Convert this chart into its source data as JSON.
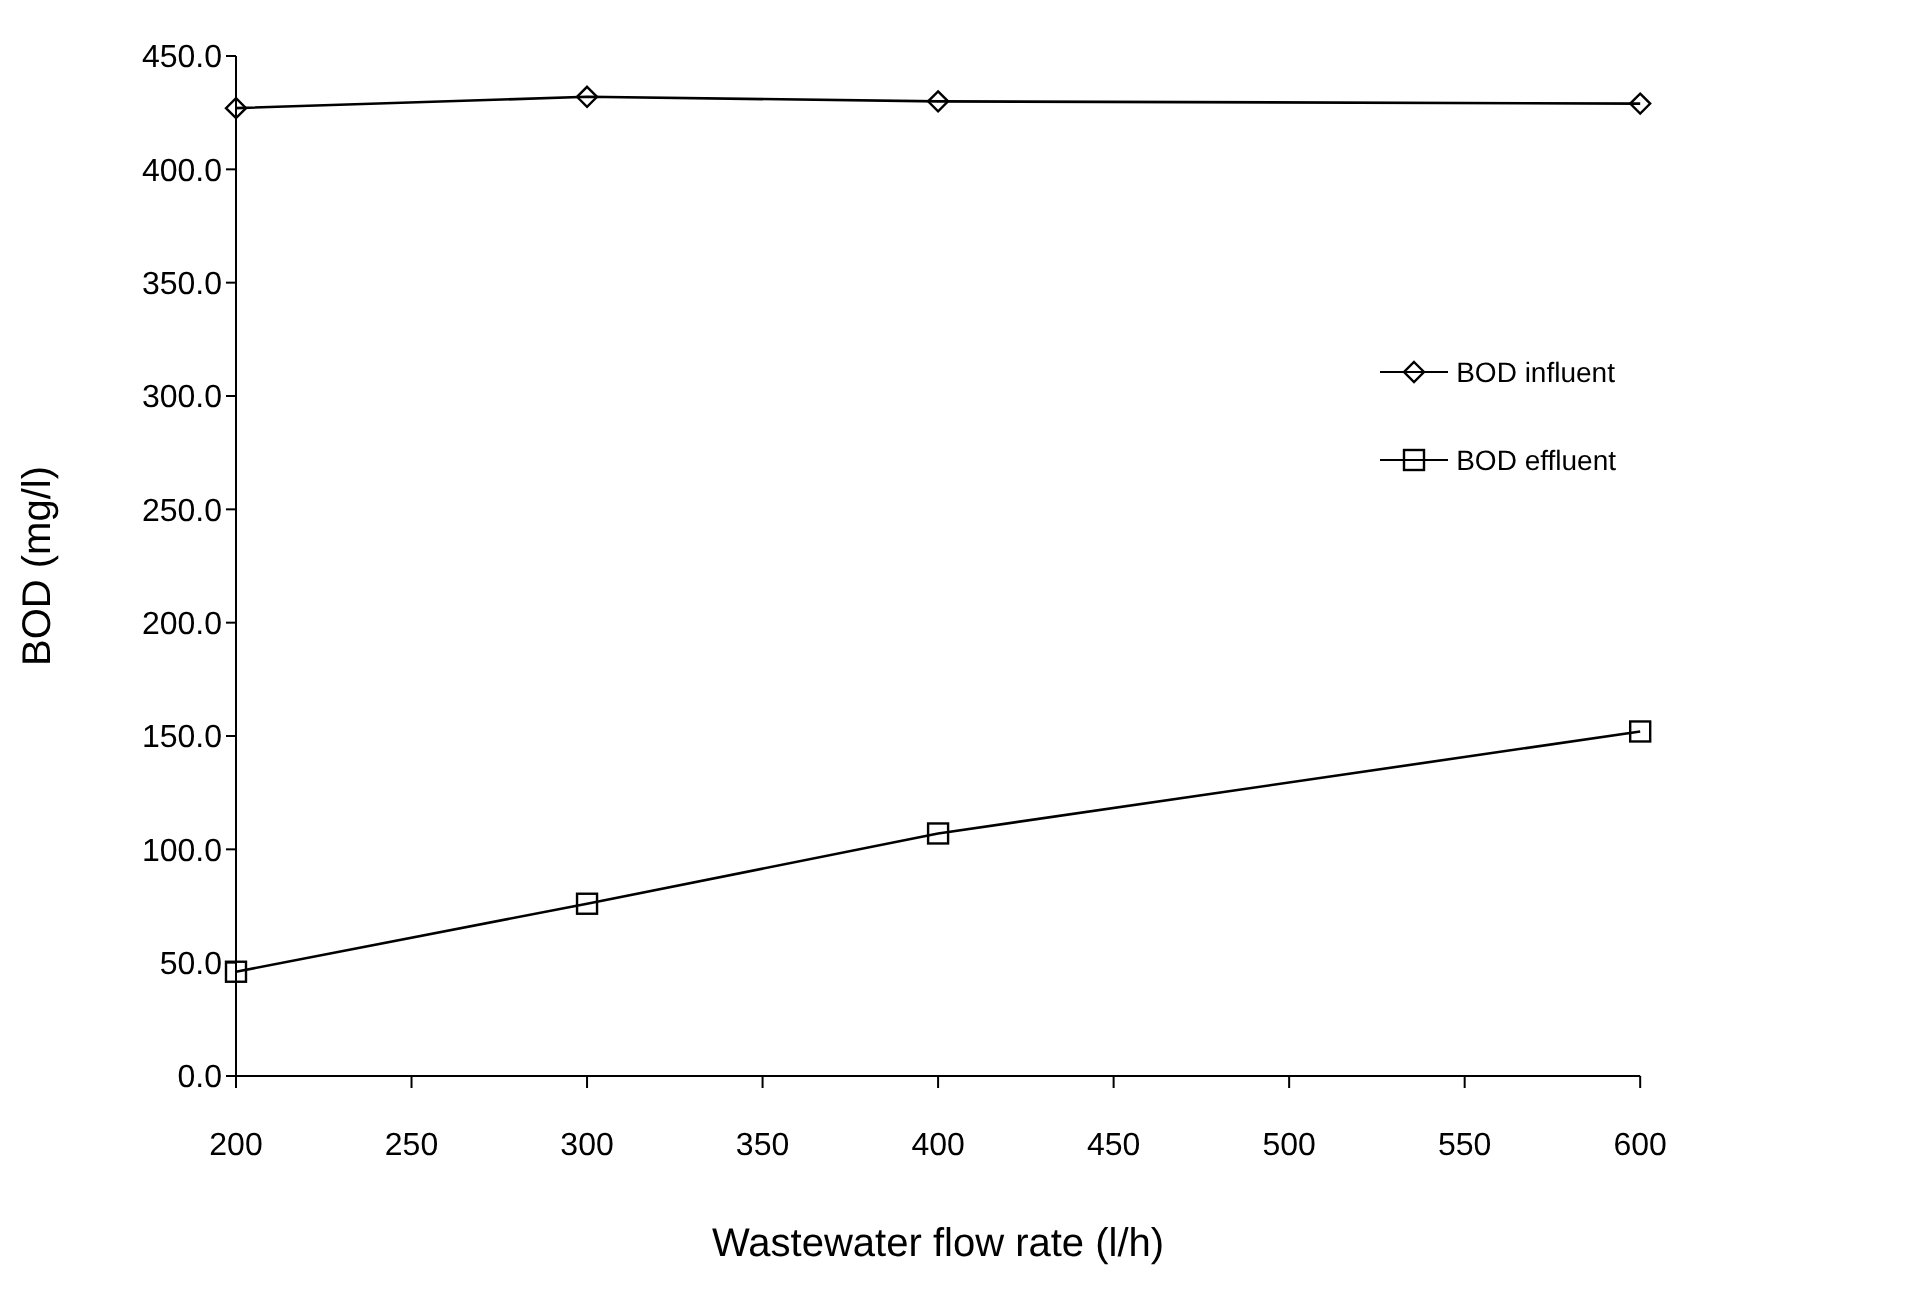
{
  "chart_data": {
    "type": "line",
    "xlabel": "Wastewater flow rate (l/h)",
    "ylabel": "BOD (mg/l)",
    "x": [
      200,
      300,
      400,
      600
    ],
    "series": [
      {
        "name": "BOD influent",
        "color": "#000000",
        "values": [
          427,
          432,
          430,
          429
        ],
        "marker": "diamond"
      },
      {
        "name": "BOD effluent",
        "color": "#000000",
        "values": [
          46,
          76,
          107,
          152
        ],
        "marker": "square"
      }
    ],
    "xlim": [
      200,
      600
    ],
    "xticks": [
      200,
      250,
      300,
      350,
      400,
      450,
      500,
      550,
      600
    ],
    "ylim": [
      0,
      450
    ],
    "yticks": [
      {
        "value": 0,
        "label": "0.0"
      },
      {
        "value": 50,
        "label": "50.0"
      },
      {
        "value": 100,
        "label": "100.0"
      },
      {
        "value": 150,
        "label": "150.0"
      },
      {
        "value": 200,
        "label": "200.0"
      },
      {
        "value": 250,
        "label": "250.0"
      },
      {
        "value": 300,
        "label": "300.0"
      },
      {
        "value": 350,
        "label": "350.0"
      },
      {
        "value": 400,
        "label": "400.0"
      },
      {
        "value": 450,
        "label": "450.0"
      }
    ],
    "grid": false,
    "legend": "right",
    "line_style": "solid"
  }
}
